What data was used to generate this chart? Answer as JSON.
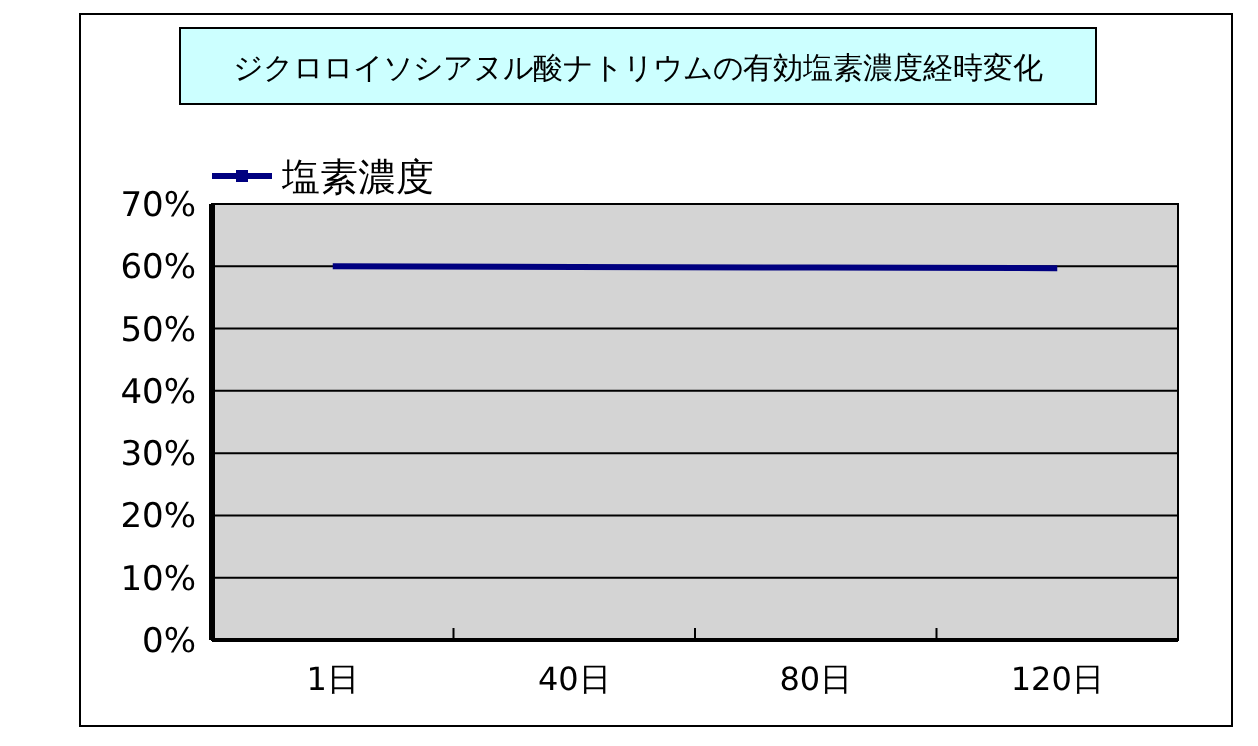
{
  "chart_data": {
    "type": "line",
    "title": "ジクロロイソシアヌル酸ナトリウムの有効塩素濃度経時変化",
    "categories": [
      "1日",
      "40日",
      "80日",
      "120日"
    ],
    "series": [
      {
        "name": "塩素濃度",
        "color": "#000080",
        "values": [
          60,
          59.9,
          59.8,
          59.7
        ]
      }
    ],
    "ylim": [
      0,
      70
    ],
    "yticks": [
      {
        "value": 0,
        "label": "0%"
      },
      {
        "value": 10,
        "label": "10%"
      },
      {
        "value": 20,
        "label": "20%"
      },
      {
        "value": 30,
        "label": "30%"
      },
      {
        "value": 40,
        "label": "40%"
      },
      {
        "value": 50,
        "label": "50%"
      },
      {
        "value": 60,
        "label": "60%"
      },
      {
        "value": 70,
        "label": "70%"
      }
    ],
    "grid": "y",
    "legend": "top left",
    "marker": "none"
  }
}
